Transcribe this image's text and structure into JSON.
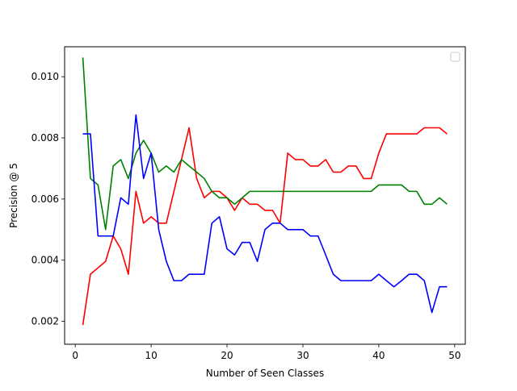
{
  "chart_data": {
    "type": "line",
    "title": "",
    "xlabel": "Number of Seen Classes",
    "ylabel": "Precision @ 5",
    "xlim": [
      -1.4,
      51.4
    ],
    "ylim": [
      0.00125,
      0.01098
    ],
    "xticks": [
      0,
      10,
      20,
      30,
      40,
      50
    ],
    "xtick_labels": [
      "0",
      "10",
      "20",
      "30",
      "40",
      "50"
    ],
    "yticks": [
      0.002,
      0.004,
      0.006,
      0.008,
      0.01
    ],
    "ytick_labels": [
      "0.002",
      "0.004",
      "0.006",
      "0.008",
      "0.010"
    ],
    "grid": false,
    "legend": {
      "placement": "top-right",
      "entries": []
    },
    "x": [
      1,
      2,
      3,
      4,
      5,
      6,
      7,
      8,
      9,
      10,
      11,
      12,
      13,
      14,
      15,
      16,
      17,
      18,
      19,
      20,
      21,
      22,
      23,
      24,
      25,
      26,
      27,
      28,
      29,
      30,
      31,
      32,
      33,
      34,
      35,
      36,
      37,
      38,
      39,
      40,
      41,
      42,
      43,
      44,
      45,
      46,
      47,
      48,
      49
    ],
    "series": [
      {
        "color": "#ff0000",
        "values": [
          0.00188,
          0.00354,
          0.00375,
          0.00396,
          0.00479,
          0.00437,
          0.00354,
          0.00625,
          0.00521,
          0.00542,
          0.00521,
          0.00521,
          0.00625,
          0.00729,
          0.00833,
          0.00667,
          0.00604,
          0.00625,
          0.00625,
          0.00604,
          0.00563,
          0.00604,
          0.00583,
          0.00583,
          0.00563,
          0.00563,
          0.00521,
          0.0075,
          0.00729,
          0.00729,
          0.00708,
          0.00708,
          0.00729,
          0.00688,
          0.00688,
          0.00708,
          0.00708,
          0.00667,
          0.00667,
          0.0075,
          0.00813,
          0.00813,
          0.00813,
          0.00813,
          0.00813,
          0.00833,
          0.00833,
          0.00833,
          0.00813
        ]
      },
      {
        "color": "#008000",
        "values": [
          0.01063,
          0.00667,
          0.00646,
          0.005,
          0.00708,
          0.00729,
          0.00667,
          0.0075,
          0.00792,
          0.0075,
          0.00688,
          0.00708,
          0.00688,
          0.00729,
          0.00708,
          0.00688,
          0.00667,
          0.00625,
          0.00604,
          0.00604,
          0.00583,
          0.00604,
          0.00625,
          0.00625,
          0.00625,
          0.00625,
          0.00625,
          0.00625,
          0.00625,
          0.00625,
          0.00625,
          0.00625,
          0.00625,
          0.00625,
          0.00625,
          0.00625,
          0.00625,
          0.00625,
          0.00625,
          0.00646,
          0.00646,
          0.00646,
          0.00646,
          0.00625,
          0.00625,
          0.00583,
          0.00583,
          0.00604,
          0.00583
        ]
      },
      {
        "color": "#0000ff",
        "values": [
          0.00813,
          0.00813,
          0.00479,
          0.00479,
          0.00479,
          0.00604,
          0.00583,
          0.00875,
          0.00667,
          0.0075,
          0.005,
          0.00396,
          0.00333,
          0.00333,
          0.00354,
          0.00354,
          0.00354,
          0.00521,
          0.00542,
          0.00437,
          0.00417,
          0.00458,
          0.00458,
          0.00396,
          0.005,
          0.00521,
          0.00521,
          0.005,
          0.005,
          0.005,
          0.00479,
          0.00479,
          0.00417,
          0.00354,
          0.00333,
          0.00333,
          0.00333,
          0.00333,
          0.00333,
          0.00354,
          0.00333,
          0.00313,
          0.00333,
          0.00354,
          0.00354,
          0.00333,
          0.00229,
          0.00313,
          0.00313
        ]
      }
    ]
  }
}
